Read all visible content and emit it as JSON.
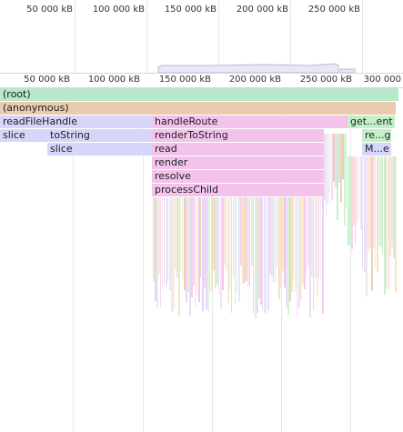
{
  "overview": {
    "ticks": [
      "50 000 kB",
      "100 000 kB",
      "150 000 kB",
      "200 000 kB",
      "250 000 kB"
    ]
  },
  "ruler": {
    "ticks": [
      "50 000 kB",
      "100 000 kB",
      "150 000 kB",
      "200 000 kB",
      "250 000 kB",
      "300 000"
    ]
  },
  "colors": {
    "root": "#b7e8c9",
    "anonymous": "#ebcbb0",
    "module_a": "#d6d6fb",
    "module_b": "#f3c3ec",
    "module_c": "#c3f0c9"
  },
  "frames": {
    "root": "(root)",
    "anonymous": "(anonymous)",
    "readFileHandle": "readFileHandle",
    "handleRoute": "handleRoute",
    "getEvent": "get...ent",
    "slice1": "slice",
    "toString": "toString",
    "renderToString": "renderToString",
    "reg": "re...g",
    "slice2": "slice",
    "read": "read",
    "me": "M...e",
    "render": "render",
    "resolve": "resolve",
    "processChild": "processChild"
  }
}
